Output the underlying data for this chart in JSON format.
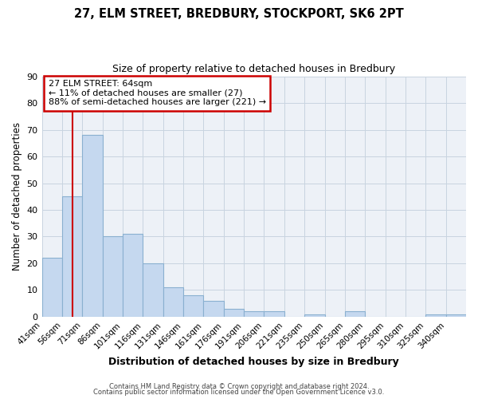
{
  "title": "27, ELM STREET, BREDBURY, STOCKPORT, SK6 2PT",
  "subtitle": "Size of property relative to detached houses in Bredbury",
  "xlabel": "Distribution of detached houses by size in Bredbury",
  "ylabel": "Number of detached properties",
  "bin_labels": [
    "41sqm",
    "56sqm",
    "71sqm",
    "86sqm",
    "101sqm",
    "116sqm",
    "131sqm",
    "146sqm",
    "161sqm",
    "176sqm",
    "191sqm",
    "206sqm",
    "221sqm",
    "235sqm",
    "250sqm",
    "265sqm",
    "280sqm",
    "295sqm",
    "310sqm",
    "325sqm",
    "340sqm"
  ],
  "bar_heights": [
    22,
    45,
    68,
    30,
    31,
    20,
    11,
    8,
    6,
    3,
    2,
    2,
    0,
    1,
    0,
    2,
    0,
    0,
    0,
    1,
    1
  ],
  "bar_color": "#c5d8ef",
  "bar_edgecolor": "#8ab0d0",
  "ylim": [
    0,
    90
  ],
  "yticks": [
    0,
    10,
    20,
    30,
    40,
    50,
    60,
    70,
    80,
    90
  ],
  "vline_x": 64,
  "vline_color": "#cc0000",
  "annotation_title": "27 ELM STREET: 64sqm",
  "annotation_line1": "← 11% of detached houses are smaller (27)",
  "annotation_line2": "88% of semi-detached houses are larger (221) →",
  "annotation_box_facecolor": "#ffffff",
  "annotation_box_edgecolor": "#cc0000",
  "plot_bg_color": "#edf1f7",
  "figure_bg_color": "#ffffff",
  "grid_color": "#c8d4e0",
  "footer_line1": "Contains HM Land Registry data © Crown copyright and database right 2024.",
  "footer_line2": "Contains public sector information licensed under the Open Government Licence v3.0."
}
